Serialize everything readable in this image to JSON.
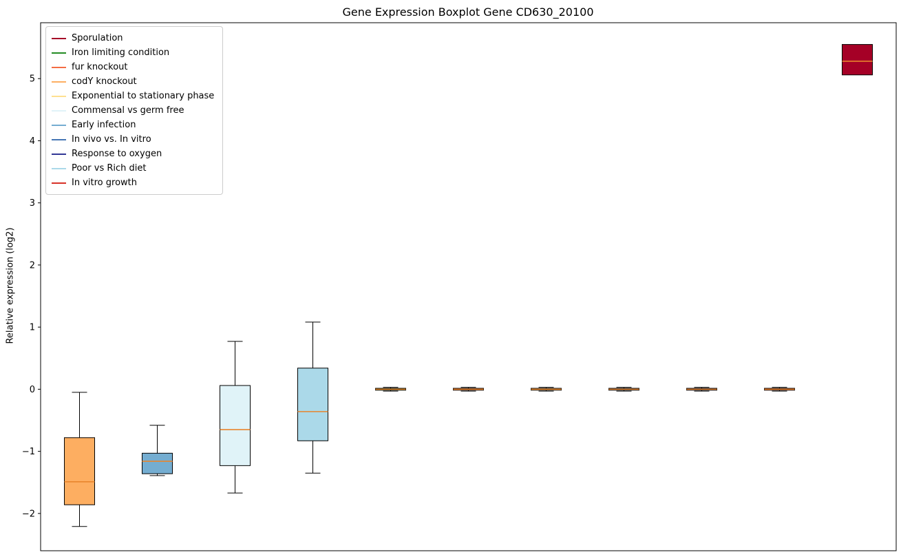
{
  "page": {
    "title": "Gene Expression Boxplot Gene CD630_20100",
    "ylabel": "Relative expression (log2)"
  },
  "chart_data": {
    "type": "boxplot",
    "title": "Gene Expression Boxplot Gene CD630_20100",
    "xlabel": "",
    "ylabel": "Relative expression (log2)",
    "ylim": [
      -2.6,
      5.9
    ],
    "yticks": [
      -2,
      -1,
      0,
      1,
      2,
      3,
      4,
      5
    ],
    "grid": false,
    "legend_position": "upper-left",
    "median_color": "#e8852d",
    "box_edge_color": "#000000",
    "legend": [
      {
        "label": "Sporulation",
        "color": "#a50026"
      },
      {
        "label": "Iron limiting condition",
        "color": "#228b22"
      },
      {
        "label": "fur knockout",
        "color": "#f46d43"
      },
      {
        "label": "codY knockout",
        "color": "#fdae61"
      },
      {
        "label": "Exponential to stationary phase",
        "color": "#fee090"
      },
      {
        "label": "Commensal vs germ free",
        "color": "#e0f3f8"
      },
      {
        "label": "Early infection",
        "color": "#74add1"
      },
      {
        "label": "In vivo vs. In vitro",
        "color": "#4575b4"
      },
      {
        "label": "Response to oxygen",
        "color": "#313695"
      },
      {
        "label": "Poor vs Rich diet",
        "color": "#abd9e9"
      },
      {
        "label": "In vitro growth",
        "color": "#d73027"
      }
    ],
    "boxes": [
      {
        "condition": "codY knockout",
        "color": "#fdae61",
        "whisker_low": -2.21,
        "q1": -1.86,
        "median": -1.49,
        "q3": -0.78,
        "whisker_high": -0.05
      },
      {
        "condition": "Early infection",
        "color": "#74add1",
        "whisker_low": -1.39,
        "q1": -1.36,
        "median": -1.16,
        "q3": -1.03,
        "whisker_high": -0.58
      },
      {
        "condition": "Commensal vs germ free",
        "color": "#e0f3f8",
        "whisker_low": -1.67,
        "q1": -1.23,
        "median": -0.65,
        "q3": 0.06,
        "whisker_high": 0.77
      },
      {
        "condition": "Poor vs Rich diet",
        "color": "#abd9e9",
        "whisker_low": -1.35,
        "q1": -0.83,
        "median": -0.36,
        "q3": 0.34,
        "whisker_high": 1.08
      },
      {
        "condition": "Iron limiting condition",
        "color": "#228b22",
        "whisker_low": -0.03,
        "q1": -0.015,
        "median": 0.0,
        "q3": 0.015,
        "whisker_high": 0.03
      },
      {
        "condition": "fur knockout",
        "color": "#f46d43",
        "whisker_low": -0.03,
        "q1": -0.015,
        "median": 0.0,
        "q3": 0.015,
        "whisker_high": 0.03
      },
      {
        "condition": "Exponential to stationary phase",
        "color": "#fee090",
        "whisker_low": -0.03,
        "q1": -0.015,
        "median": 0.0,
        "q3": 0.015,
        "whisker_high": 0.03
      },
      {
        "condition": "In vivo vs. In vitro",
        "color": "#4575b4",
        "whisker_low": -0.03,
        "q1": -0.015,
        "median": 0.0,
        "q3": 0.015,
        "whisker_high": 0.03
      },
      {
        "condition": "Response to oxygen",
        "color": "#313695",
        "whisker_low": -0.03,
        "q1": -0.015,
        "median": 0.0,
        "q3": 0.015,
        "whisker_high": 0.03
      },
      {
        "condition": "In vitro growth",
        "color": "#d73027",
        "whisker_low": -0.03,
        "q1": -0.015,
        "median": 0.0,
        "q3": 0.015,
        "whisker_high": 0.03
      },
      {
        "condition": "Sporulation",
        "color": "#a50026",
        "whisker_low": 5.06,
        "q1": 5.06,
        "median": 5.28,
        "q3": 5.55,
        "whisker_high": 5.55
      }
    ]
  }
}
